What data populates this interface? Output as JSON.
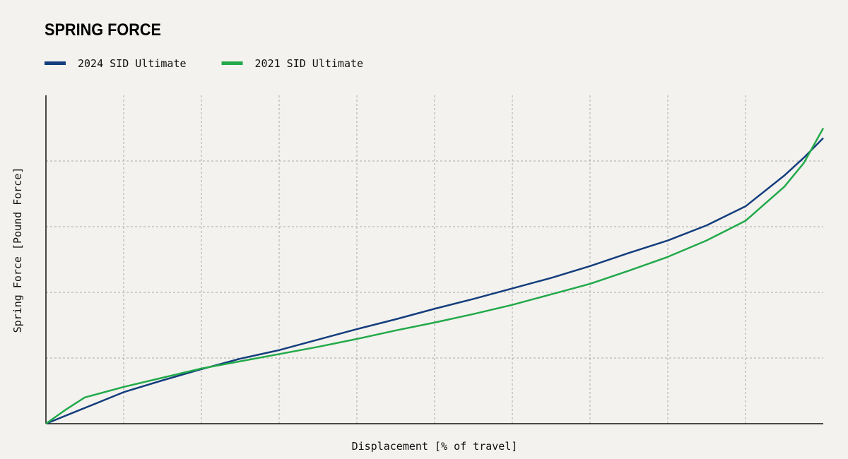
{
  "chart_data": {
    "type": "line",
    "title": "SPRING FORCE",
    "x_label": "Displacement [% of travel]",
    "y_label": "Spring Force [Pound Force]",
    "x": [
      0,
      2.5,
      5,
      10,
      15,
      20,
      25,
      30,
      35,
      40,
      45,
      50,
      55,
      60,
      65,
      70,
      75,
      80,
      85,
      90,
      95,
      97.5,
      100
    ],
    "series": [
      {
        "name": "2024 SID Ultimate",
        "color": "#143d7d",
        "values": [
          0,
          0.12,
          0.24,
          0.48,
          0.66,
          0.83,
          0.99,
          1.12,
          1.28,
          1.44,
          1.59,
          1.75,
          1.9,
          2.06,
          2.22,
          2.4,
          2.6,
          2.79,
          3.02,
          3.31,
          3.78,
          4.05,
          4.35
        ]
      },
      {
        "name": "2021 SID Ultimate",
        "color": "#22a94a",
        "values": [
          0,
          0.21,
          0.4,
          0.56,
          0.7,
          0.84,
          0.95,
          1.06,
          1.17,
          1.29,
          1.42,
          1.54,
          1.67,
          1.81,
          1.97,
          2.13,
          2.33,
          2.54,
          2.79,
          3.09,
          3.61,
          3.97,
          4.5
        ]
      }
    ],
    "xlim": [
      0,
      100
    ],
    "xticks": [
      10,
      20,
      30,
      40,
      50,
      60,
      70,
      80,
      90
    ],
    "ylim": [
      0,
      5
    ],
    "yticks": [
      1,
      2,
      3,
      4
    ],
    "grid": true,
    "legend": "top-left"
  }
}
